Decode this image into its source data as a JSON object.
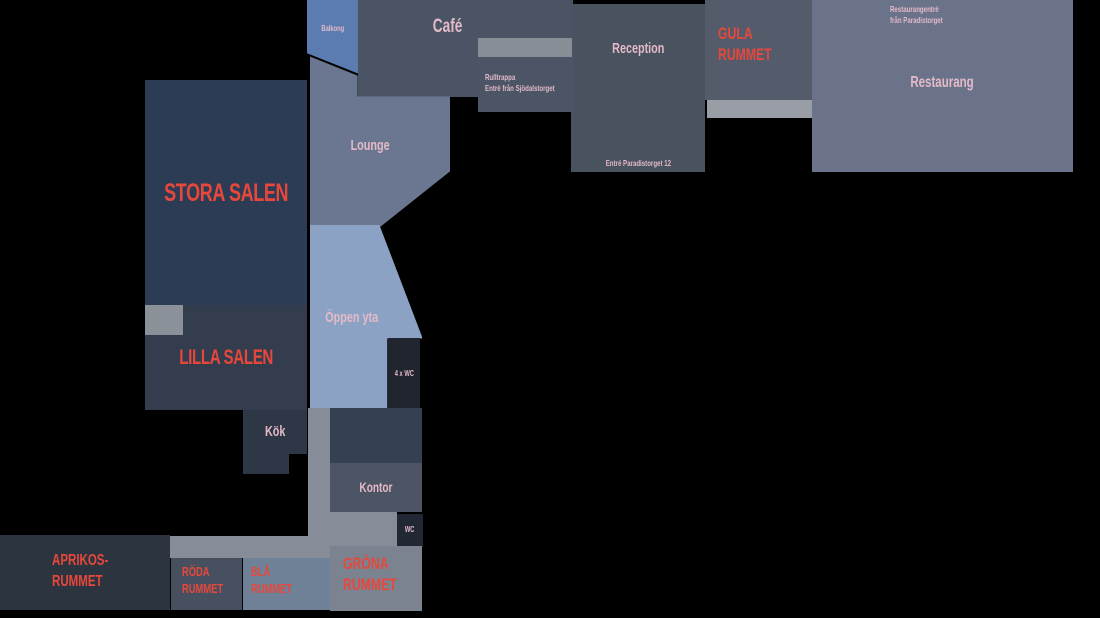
{
  "rooms": {
    "balkong": {
      "label": "Balkong"
    },
    "cafe": {
      "label": "Café"
    },
    "rulltrappa": {
      "line1": "Rulltrappa",
      "line2": "Entré från Sjödalstorget"
    },
    "reception": {
      "label": "Reception",
      "entrance": "Entré Paradistorget 12"
    },
    "gula": {
      "line1": "GULA",
      "line2": "RUMMET"
    },
    "restaurang": {
      "label": "Restaurang",
      "entrance_line1": "Restaurangentré",
      "entrance_line2": "från Paradistorget"
    },
    "lounge": {
      "label": "Lounge"
    },
    "stora": {
      "label": "STORA SALEN"
    },
    "oppen": {
      "label": "Öppen yta"
    },
    "lilla": {
      "label": "LILLA SALEN"
    },
    "wc4": {
      "label": "4 x WC"
    },
    "kok": {
      "label": "Kök"
    },
    "kontor": {
      "label": "Kontor"
    },
    "wc": {
      "label": "WC"
    },
    "grona": {
      "line1": "GRÖNA",
      "line2": "RUMMET"
    },
    "aprikos": {
      "line1": "APRIKOS-",
      "line2": "RUMMET"
    },
    "roda": {
      "line1": "RÖDA",
      "line2": "RUMMET"
    },
    "bla": {
      "line1": "BLÅ",
      "line2": "RUMMET"
    }
  },
  "colors": {
    "background": "#000000",
    "red_label": "#e8473b",
    "pink_label": "#e4bac9",
    "balkong": "#5b7cb0",
    "cafe": "#4a5465",
    "reception": "#49525f",
    "gula": "#545c6b",
    "restaurang": "#6a7389",
    "lounge": "#6b7790",
    "oppen_yta": "#8ca2c4",
    "stora_salen": "#2d3c55",
    "lilla_salen": "#343d4d",
    "kok": "#2e3746",
    "kontor": "#4d5464",
    "wc_box": "#222734",
    "aprikos": "#2c3440",
    "roda": "#47505e",
    "bla": "#6e8196",
    "grona": "#7b8290",
    "corridor": "#868d99",
    "corridor_light": "#989da6"
  }
}
